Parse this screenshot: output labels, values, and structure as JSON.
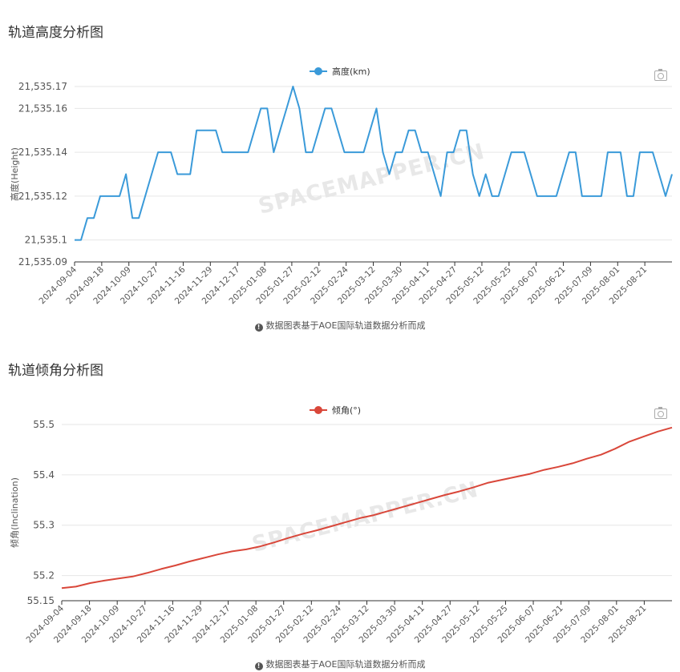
{
  "charts": [
    {
      "section_title": "轨道高度分析图",
      "footnote": "数据图表基于AOE国际轨道数据分析而成",
      "watermark": "SPACEMAPPER.CN",
      "color": "#3a9ad9",
      "chart_data": {
        "type": "line",
        "ylabel": "高度(Height)",
        "legend": "top-center",
        "grid": true,
        "ylim": [
          21535.09,
          21535.17
        ],
        "y_ticks": [
          "21,535.17",
          "21,535.16",
          "21,535.14",
          "21,535.12",
          "21,535.1",
          "21,535.09"
        ],
        "y_tick_values": [
          21535.17,
          21535.16,
          21535.14,
          21535.12,
          21535.1,
          21535.09
        ],
        "x_labels": [
          "2024-09-04",
          "2024-09-18",
          "2024-10-09",
          "2024-10-27",
          "2024-11-16",
          "2024-11-29",
          "2024-12-17",
          "2025-01-08",
          "2025-01-27",
          "2025-02-12",
          "2025-02-24",
          "2025-03-12",
          "2025-03-30",
          "2025-04-11",
          "2025-04-27",
          "2025-05-12",
          "2025-05-25",
          "2025-06-07",
          "2025-06-21",
          "2025-07-09",
          "2025-08-01",
          "2025-08-21"
        ],
        "series": [
          {
            "name": "高度(km)",
            "values": [
              21535.1,
              21535.1,
              21535.11,
              21535.11,
              21535.12,
              21535.12,
              21535.12,
              21535.12,
              21535.13,
              21535.11,
              21535.11,
              21535.12,
              21535.13,
              21535.14,
              21535.14,
              21535.14,
              21535.13,
              21535.13,
              21535.13,
              21535.15,
              21535.15,
              21535.15,
              21535.15,
              21535.14,
              21535.14,
              21535.14,
              21535.14,
              21535.14,
              21535.15,
              21535.16,
              21535.16,
              21535.14,
              21535.15,
              21535.16,
              21535.17,
              21535.16,
              21535.14,
              21535.14,
              21535.15,
              21535.16,
              21535.16,
              21535.15,
              21535.14,
              21535.14,
              21535.14,
              21535.14,
              21535.15,
              21535.16,
              21535.14,
              21535.13,
              21535.14,
              21535.14,
              21535.15,
              21535.15,
              21535.14,
              21535.14,
              21535.13,
              21535.12,
              21535.14,
              21535.14,
              21535.15,
              21535.15,
              21535.13,
              21535.12,
              21535.13,
              21535.12,
              21535.12,
              21535.13,
              21535.14,
              21535.14,
              21535.14,
              21535.13,
              21535.12,
              21535.12,
              21535.12,
              21535.12,
              21535.13,
              21535.14,
              21535.14,
              21535.12,
              21535.12,
              21535.12,
              21535.12,
              21535.14,
              21535.14,
              21535.14,
              21535.12,
              21535.12,
              21535.14,
              21535.14,
              21535.14,
              21535.13,
              21535.12,
              21535.13
            ]
          }
        ]
      }
    },
    {
      "section_title": "轨道倾角分析图",
      "footnote": "数据图表基于AOE国际轨道数据分析而成",
      "watermark": "SPACEMAPPER.CN",
      "color": "#d9473a",
      "chart_data": {
        "type": "line",
        "ylabel": "倾角(Inclination)",
        "legend": "top-center",
        "grid": true,
        "ylim": [
          55.15,
          55.5
        ],
        "y_ticks": [
          "55.5",
          "55.4",
          "55.3",
          "55.2",
          "55.15"
        ],
        "y_tick_values": [
          55.5,
          55.4,
          55.3,
          55.2,
          55.15
        ],
        "x_labels": [
          "2024-09-04",
          "2024-09-18",
          "2024-10-09",
          "2024-10-27",
          "2024-11-16",
          "2024-11-29",
          "2024-12-17",
          "2025-01-08",
          "2025-01-27",
          "2025-02-12",
          "2025-02-24",
          "2025-03-12",
          "2025-03-30",
          "2025-04-11",
          "2025-04-27",
          "2025-05-12",
          "2025-05-25",
          "2025-06-07",
          "2025-06-21",
          "2025-07-09",
          "2025-08-01",
          "2025-08-21"
        ],
        "series": [
          {
            "name": "倾角(°)",
            "values": [
              55.175,
              55.178,
              55.185,
              55.19,
              55.194,
              55.198,
              55.205,
              55.213,
              55.22,
              55.228,
              55.235,
              55.242,
              55.248,
              55.252,
              55.258,
              55.266,
              55.275,
              55.283,
              55.29,
              55.298,
              55.306,
              55.314,
              55.32,
              55.328,
              55.336,
              55.344,
              55.352,
              55.36,
              55.367,
              55.375,
              55.384,
              55.39,
              55.396,
              55.402,
              55.41,
              55.416,
              55.423,
              55.432,
              55.44,
              55.452,
              55.466,
              55.476,
              55.486,
              55.494
            ]
          }
        ]
      }
    }
  ]
}
